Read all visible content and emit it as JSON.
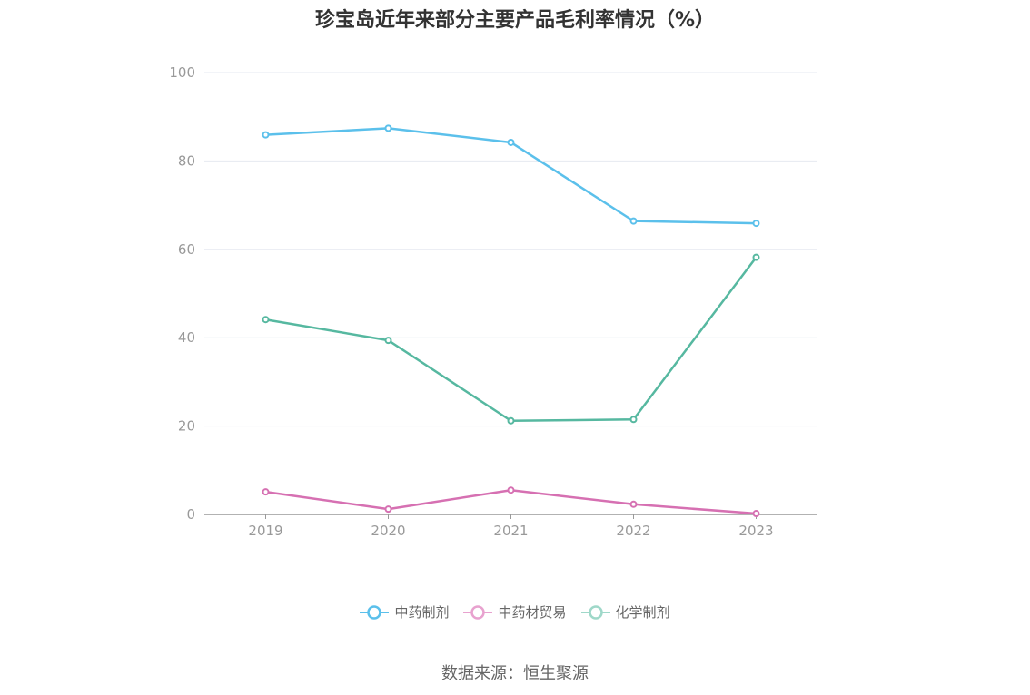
{
  "chart_data": {
    "type": "line",
    "title": "珍宝岛近年来部分主要产品毛利率情况（%）",
    "categories": [
      "2019",
      "2020",
      "2021",
      "2022",
      "2023"
    ],
    "ylim": [
      0,
      100
    ],
    "yticks": [
      0,
      20,
      40,
      60,
      80,
      100
    ],
    "grid": true,
    "legend_position": "bottom",
    "series": [
      {
        "name": "中药制剂",
        "color": "#5bc0eb",
        "values": [
          85.9,
          87.4,
          84.2,
          66.4,
          65.9
        ]
      },
      {
        "name": "中药材贸易",
        "color": "#d670b2",
        "values": [
          5.1,
          1.2,
          5.5,
          2.3,
          0.2
        ]
      },
      {
        "name": "化学制剂",
        "color": "#56b8a0",
        "values": [
          44.1,
          39.4,
          21.2,
          21.5,
          58.2
        ]
      }
    ]
  },
  "legend": {
    "items": [
      {
        "label": "中药制剂",
        "color": "#5bc0eb"
      },
      {
        "label": "中药材贸易",
        "color": "#e8a2cf"
      },
      {
        "label": "化学制剂",
        "color": "#9fd8c9"
      }
    ]
  },
  "source": "数据来源：恒生聚源"
}
